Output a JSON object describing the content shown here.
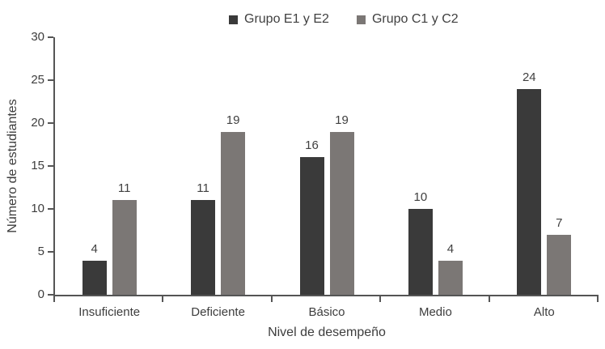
{
  "chart_data": {
    "type": "bar",
    "categories": [
      "Insuficiente",
      "Deficiente",
      "Básico",
      "Medio",
      "Alto"
    ],
    "series": [
      {
        "name": "Grupo E1 y E2",
        "color": "#3a3a3a",
        "values": [
          4,
          11,
          16,
          10,
          24
        ]
      },
      {
        "name": "Grupo C1 y C2",
        "color": "#7b7775",
        "values": [
          11,
          19,
          19,
          4,
          7
        ]
      }
    ],
    "title": "",
    "xlabel": "Nivel de desempeño",
    "ylabel": "Número de estudiantes",
    "ylim": [
      0,
      30
    ],
    "yticks": [
      0,
      5,
      10,
      15,
      20,
      25,
      30
    ],
    "grid": false,
    "legend_position": "top",
    "value_labels": true
  },
  "colors": {
    "axis": "#555555",
    "text": "#404040",
    "background": "#ffffff"
  }
}
